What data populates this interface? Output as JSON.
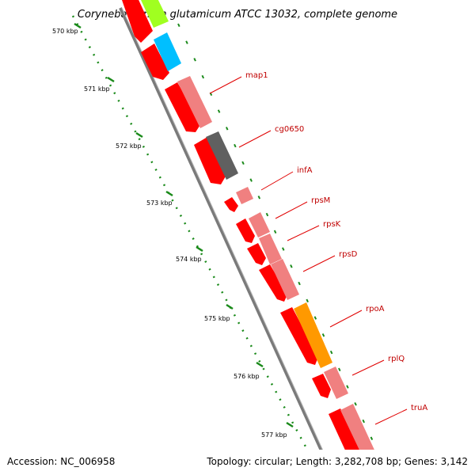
{
  "title": "Corynebacterium glutamicum ATCC 13032, complete genome",
  "footer": {
    "accession": "Accession: NC_006958",
    "summary": "Topology: circular; Length: 3,282,708 bp; Genes: 3,142"
  },
  "ruler_labels": [
    "570 kbp",
    "571 kbp",
    "572 kbp",
    "573 kbp",
    "574 kbp",
    "575 kbp",
    "576 kbp",
    "577 kbp"
  ],
  "gene_labels": [
    "map1",
    "cg0650",
    "infA",
    "rpsM",
    "rpsK",
    "rpsD",
    "rpoA",
    "rplQ",
    "truA"
  ],
  "colors": {
    "cds_forward": "#ff0000",
    "feature_light": "#f08080",
    "feature_cyan": "#00bfff",
    "feature_green": "#a0ff20",
    "feature_gray": "#606060",
    "feature_orange": "#ff9900",
    "backbone": "#888888",
    "tick": "#1a8a1a",
    "label": "#c00000"
  }
}
